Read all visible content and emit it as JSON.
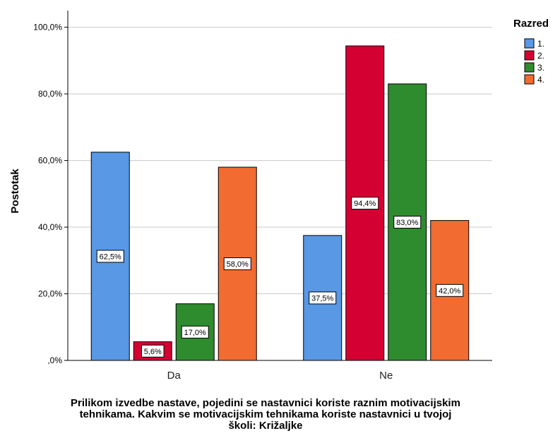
{
  "chart_data": {
    "type": "bar",
    "categories": [
      "Da",
      "Ne"
    ],
    "series": [
      {
        "name": "1.",
        "color": "#5898e5",
        "values": [
          62.5,
          37.5
        ],
        "labels": [
          "62,5%",
          "37,5%"
        ]
      },
      {
        "name": "2.",
        "color": "#d50032",
        "values": [
          5.6,
          94.4
        ],
        "labels": [
          "5,6%",
          "94,4%"
        ]
      },
      {
        "name": "3.",
        "color": "#2e8b2e",
        "values": [
          17.0,
          83.0
        ],
        "labels": [
          "17,0%",
          "83,0%"
        ]
      },
      {
        "name": "4.",
        "color": "#f26b30",
        "values": [
          58.0,
          42.0
        ],
        "labels": [
          "58,0%",
          "42,0%"
        ]
      }
    ],
    "ylim": [
      0,
      105
    ],
    "yticks": [
      0,
      20,
      40,
      60,
      80,
      100
    ],
    "ytick_labels": [
      ",0%",
      "20,0%",
      "40,0%",
      "60,0%",
      "80,0%",
      "100,0%"
    ],
    "ylabel": "Postotak",
    "xlabel": "Prilikom izvedbe nastave, pojedini se nastavnici koriste raznim motivacijskim tehnikama. Kakvim se motivacijskim tehnikama koriste nastavnici u tvojoj školi: Križaljke",
    "legend_title": "Razred",
    "legend_position": "top-right",
    "grid": true,
    "grid_color": "#c8c8c8"
  }
}
